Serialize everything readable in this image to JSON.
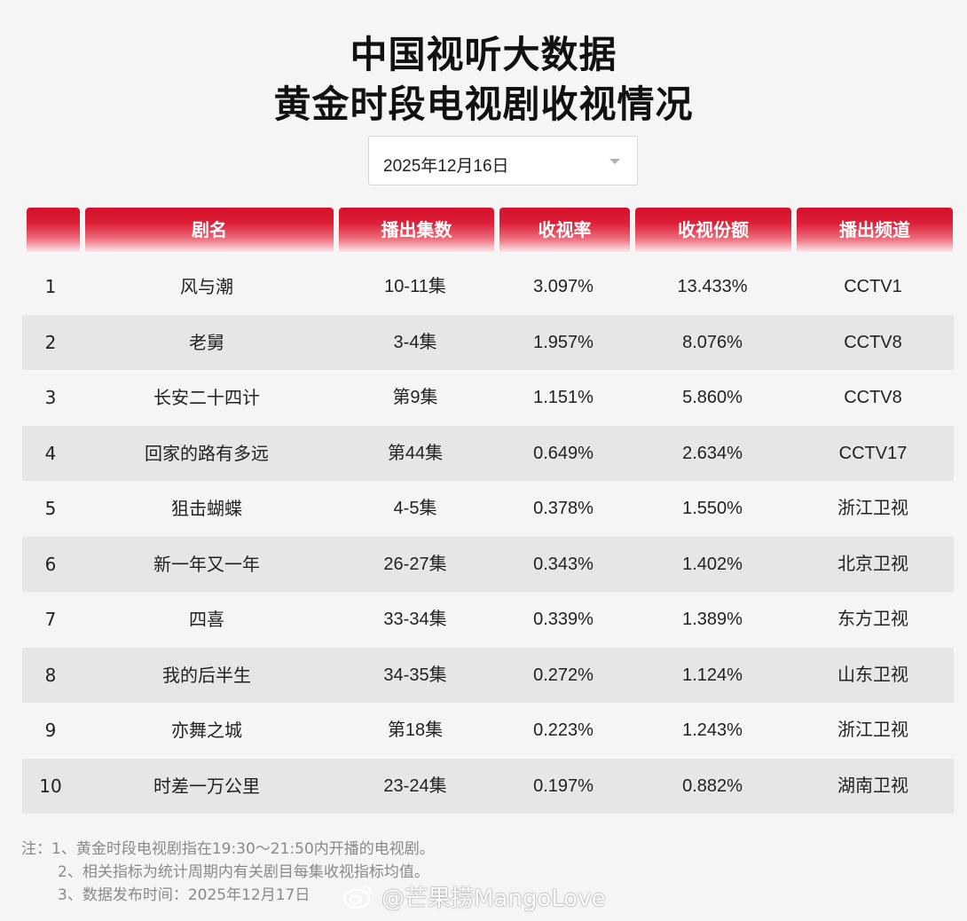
{
  "title_line1": "中国视听大数据",
  "title_line2": "黄金时段电视剧收视情况",
  "date_select": {
    "value": "2025年12月16日",
    "icon": "chevron-down-icon"
  },
  "table": {
    "headers": [
      "",
      "剧名",
      "播出集数",
      "收视率",
      "收视份额",
      "播出频道"
    ],
    "rows": [
      [
        "1",
        "风与潮",
        "10-11集",
        "3.097%",
        "13.433%",
        "CCTV1"
      ],
      [
        "2",
        "老舅",
        "3-4集",
        "1.957%",
        "8.076%",
        "CCTV8"
      ],
      [
        "3",
        "长安二十四计",
        "第9集",
        "1.151%",
        "5.860%",
        "CCTV8"
      ],
      [
        "4",
        "回家的路有多远",
        "第44集",
        "0.649%",
        "2.634%",
        "CCTV17"
      ],
      [
        "5",
        "狙击蝴蝶",
        "4-5集",
        "0.378%",
        "1.550%",
        "浙江卫视"
      ],
      [
        "6",
        "新一年又一年",
        "26-27集",
        "0.343%",
        "1.402%",
        "北京卫视"
      ],
      [
        "7",
        "四喜",
        "33-34集",
        "0.339%",
        "1.389%",
        "东方卫视"
      ],
      [
        "8",
        "我的后半生",
        "34-35集",
        "0.272%",
        "1.124%",
        "山东卫视"
      ],
      [
        "9",
        "亦舞之城",
        "第18集",
        "0.223%",
        "1.243%",
        "浙江卫视"
      ],
      [
        "10",
        "时差一万公里",
        "23-24集",
        "0.197%",
        "0.882%",
        "湖南卫视"
      ]
    ]
  },
  "notes": [
    "注：1、黄金时段电视剧指在19:30～21:50内开播的电视剧。",
    "2、相关指标为统计周期内有关剧目每集收视指标均值。",
    "3、数据发布时间：2025年12月17日"
  ],
  "watermark": {
    "text": "@芒果捞MangoLove",
    "icon": "weibo-logo-icon"
  },
  "colors": {
    "header_red": "#d5102a",
    "row_alt": "#e6e6e6",
    "background": "#f5f5f5",
    "note_gray": "#8a8a8a"
  }
}
